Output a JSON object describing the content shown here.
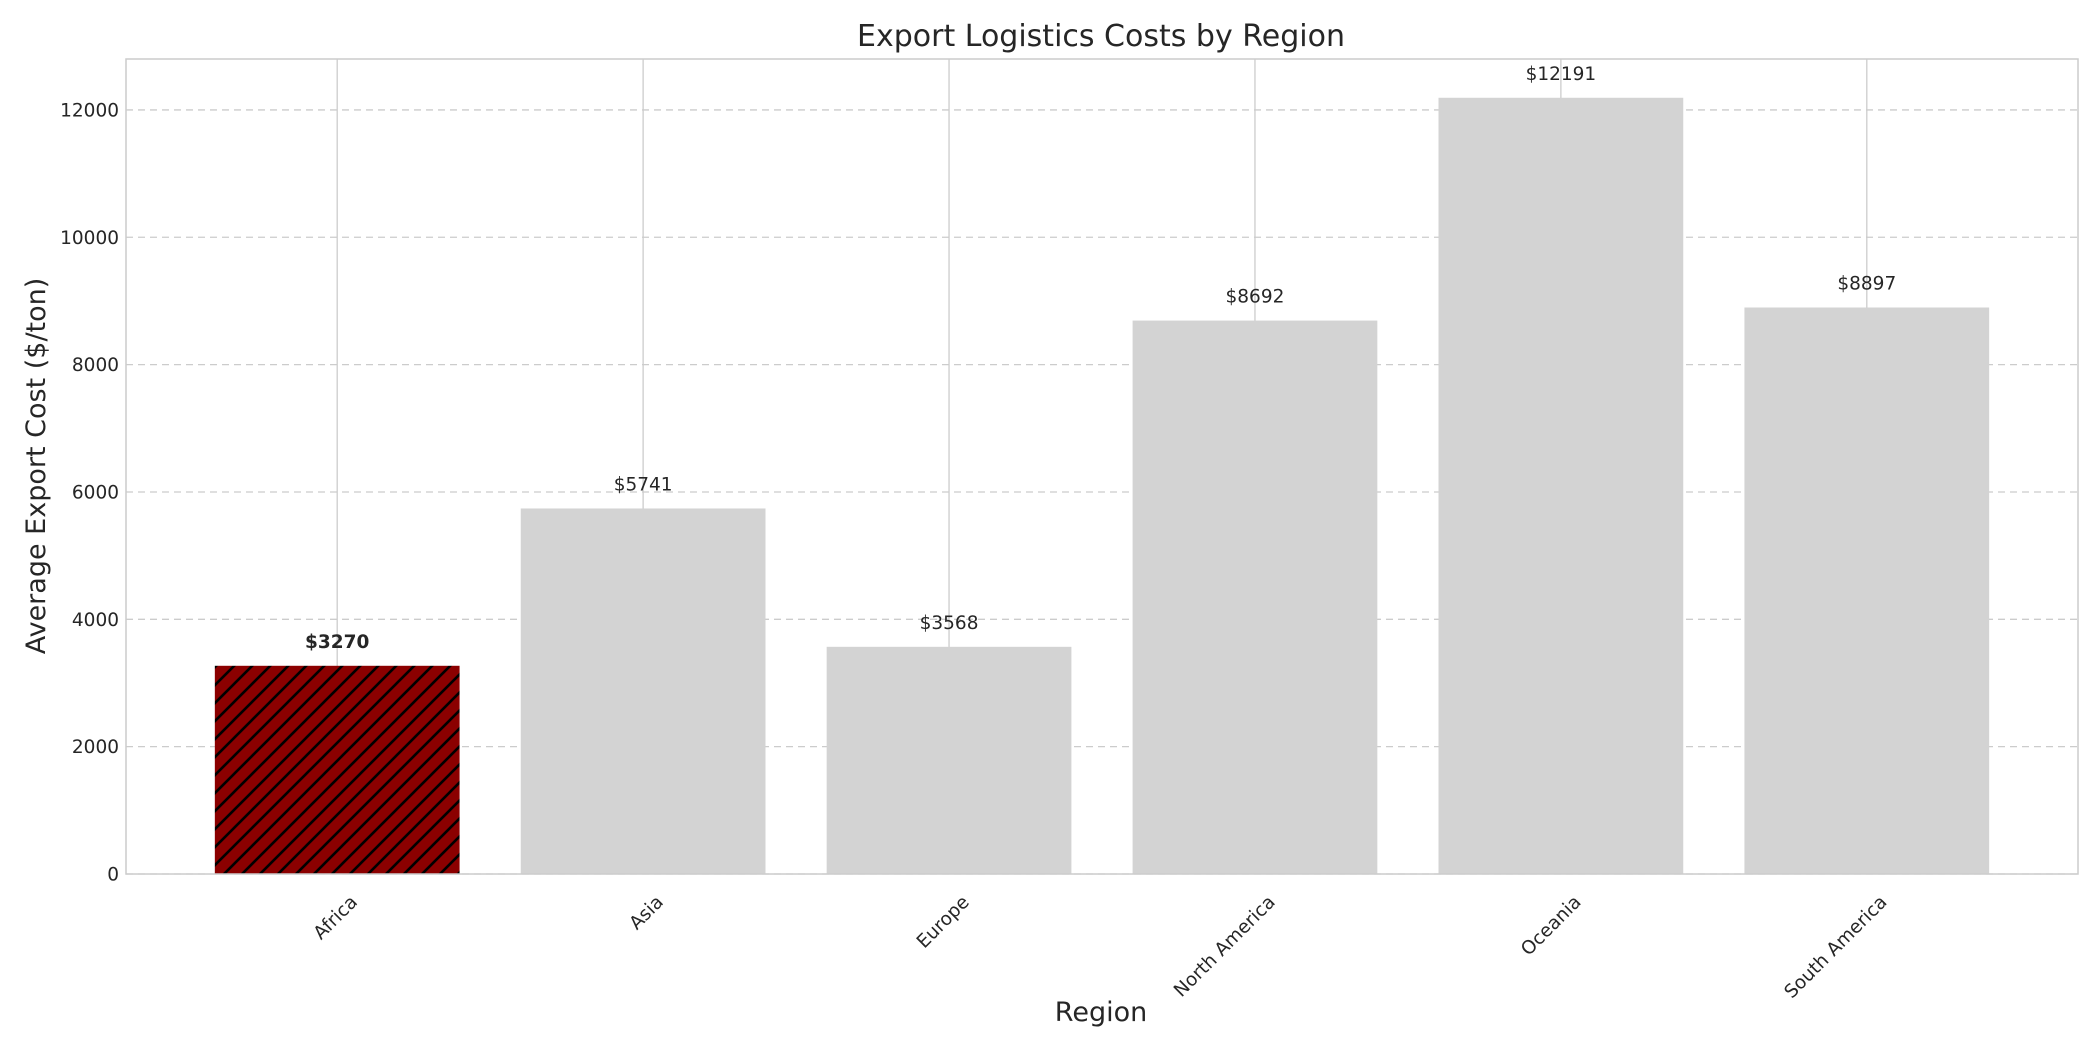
{
  "chart_data": {
    "type": "bar",
    "title": "Export Logistics Costs by Region",
    "xlabel": "Region",
    "ylabel": "Average Export Cost ($/ton)",
    "categories": [
      "Africa",
      "Asia",
      "Europe",
      "North America",
      "Oceania",
      "South America"
    ],
    "values": [
      3270,
      5741,
      3568,
      8692,
      12191,
      8897
    ],
    "value_labels": [
      "$3270",
      "$5741",
      "$3568",
      "$8692",
      "$12191",
      "$8897"
    ],
    "highlight_index": 0,
    "ylim": [
      0,
      12800
    ],
    "yticks": [
      0,
      2000,
      4000,
      6000,
      8000,
      10000,
      12000
    ],
    "ytick_labels": [
      "0",
      "2000",
      "4000",
      "6000",
      "8000",
      "10000",
      "12000"
    ],
    "grid": {
      "y": "dashed",
      "x": "solid"
    },
    "legend": "none",
    "colors": {
      "highlight_fill": "#8b0000",
      "highlight_hatch": "#000000",
      "bar_fill": "#d3d3d3",
      "grid": "#cccccc",
      "frame": "#cccccc",
      "text": "#262626"
    }
  }
}
